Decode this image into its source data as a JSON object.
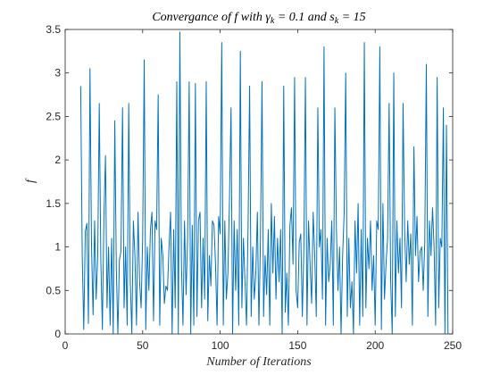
{
  "chart_data": {
    "type": "line",
    "title_parts": [
      "Convergance of f with ",
      "γ",
      "k",
      " = 0.1 and ",
      "s",
      "k",
      " = 15"
    ],
    "xlabel": "Number of Iterations",
    "ylabel": "f",
    "xlim": [
      0,
      250
    ],
    "ylim": [
      0,
      3.5
    ],
    "grid": false,
    "x_ticks": [
      "0",
      "50",
      "100",
      "150",
      "200",
      "250"
    ],
    "y_ticks": [
      "0",
      "0.5",
      "1",
      "1.5",
      "2",
      "2.5",
      "3",
      "3.5"
    ],
    "series": [
      {
        "color": "#0072BD",
        "x_start": 10,
        "x_step": 1,
        "y": [
          2.85,
          0.9,
          0.05,
          1.18,
          1.27,
          0.12,
          3.05,
          1.0,
          0.22,
          1.3,
          0.4,
          0.9,
          2.65,
          0.85,
          0.05,
          1.35,
          2.05,
          0.3,
          1.0,
          0.1,
          1.1,
          0.0,
          2.45,
          0.75,
          0.0,
          0.85,
          0.95,
          2.6,
          0.3,
          1.0,
          0.1,
          2.65,
          0.6,
          0.0,
          1.3,
          0.9,
          0.1,
          1.4,
          0.6,
          0.3,
          1.1,
          3.15,
          0.05,
          1.0,
          0.5,
          1.2,
          1.4,
          0.15,
          1.3,
          1.2,
          2.75,
          0.1,
          1.1,
          0.9,
          0.35,
          0.55,
          0.5,
          1.0,
          1.4,
          0.0,
          1.2,
          0.3,
          2.9,
          0.0,
          3.47,
          0.8,
          0.1,
          1.3,
          0.45,
          1.1,
          2.9,
          0.0,
          1.25,
          0.1,
          2.88,
          0.2,
          1.3,
          1.4,
          0.3,
          1.1,
          0.4,
          2.9,
          0.15,
          0.9,
          0.55,
          1.3,
          1.25,
          0.8,
          0.1,
          1.35,
          1.15,
          3.35,
          0.1,
          1.3,
          0.4,
          0.7,
          1.55,
          2.6,
          0.0,
          1.3,
          0.5,
          1.2,
          0.1,
          3.25,
          0.3,
          1.1,
          0.6,
          0.1,
          1.25,
          2.85,
          0.2,
          1.0,
          0.4,
          0.7,
          1.4,
          0.1,
          1.1,
          2.9,
          0.2,
          0.9,
          0.45,
          1.2,
          0.1,
          1.5,
          0.7,
          1.35,
          0.4,
          1.1,
          0.6,
          1.2,
          0.0,
          2.85,
          0.25,
          0.7,
          0.1,
          1.25,
          1.45,
          0.8,
          2.95,
          0.5,
          0.3,
          1.05,
          1.15,
          0.2,
          1.0,
          2.95,
          0.1,
          1.3,
          0.8,
          0.35,
          1.4,
          0.9,
          0.2,
          2.6,
          1.0,
          1.2,
          0.4,
          3.3,
          0.1,
          1.1,
          0.6,
          0.8,
          1.3,
          0.1,
          2.6,
          1.2,
          0.5,
          1.0,
          0.0,
          0.9,
          1.4,
          3.0,
          0.2,
          1.1,
          0.3,
          0.6,
          0.0,
          1.3,
          0.7,
          1.5,
          0.1,
          1.2,
          0.2,
          3.35,
          0.3,
          1.1,
          0.75,
          1.3,
          0.5,
          0.9,
          0.1,
          1.3,
          1.2,
          3.3,
          0.05,
          1.5,
          0.4,
          0.8,
          1.1,
          2.65,
          0.6,
          0.0,
          3.0,
          0.2,
          1.3,
          0.7,
          1.1,
          0.3,
          2.65,
          1.2,
          0.6,
          1.3,
          0.8,
          1.15,
          0.1,
          2.15,
          0.9,
          1.35,
          0.6,
          0.95,
          1.0,
          0.5,
          1.05,
          3.1,
          0.2,
          1.3,
          0.9,
          1.45,
          1.0,
          0.1,
          2.95,
          0.3,
          1.1,
          1.0,
          2.6,
          0.0,
          2.4,
          0.0
        ]
      }
    ]
  }
}
